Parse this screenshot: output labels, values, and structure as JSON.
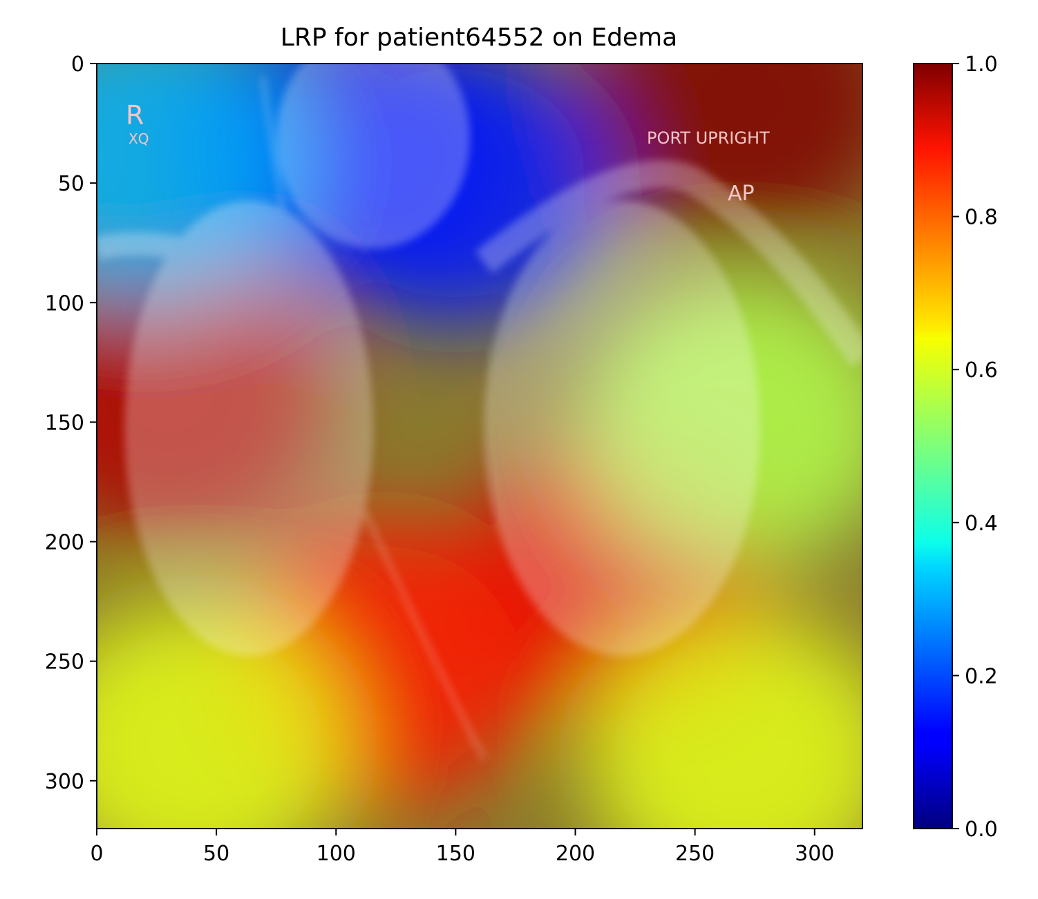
{
  "chart_data": {
    "type": "heatmap",
    "title": "LRP for patient64552 on Edema",
    "xlabel": "",
    "ylabel": "",
    "xlim": [
      0,
      320
    ],
    "ylim": [
      320,
      0
    ],
    "x_ticks": [
      0,
      50,
      100,
      150,
      200,
      250,
      300
    ],
    "y_ticks": [
      0,
      50,
      100,
      150,
      200,
      250,
      300
    ],
    "colorbar": {
      "colormap": "jet",
      "range": [
        0.0,
        1.0
      ],
      "ticks": [
        "0.0",
        "0.2",
        "0.4",
        "0.6",
        "0.8",
        "1.0"
      ]
    },
    "background_image": "chest x-ray (AP, portable upright)",
    "image_annotations": [
      "R",
      "XQ",
      "PORT UPRIGHT",
      "AP"
    ],
    "relevance_blobs": [
      {
        "x": 270,
        "y": 15,
        "value": 1.0
      },
      {
        "x": 30,
        "y": 140,
        "value": 0.95
      },
      {
        "x": 220,
        "y": 215,
        "value": 0.9
      },
      {
        "x": 120,
        "y": 250,
        "value": 0.85
      },
      {
        "x": 100,
        "y": 35,
        "value": 0.1
      },
      {
        "x": 150,
        "y": 50,
        "value": 0.15
      },
      {
        "x": 20,
        "y": 40,
        "value": 0.3
      },
      {
        "x": 270,
        "y": 150,
        "value": 0.55
      },
      {
        "x": 40,
        "y": 285,
        "value": 0.6
      },
      {
        "x": 270,
        "y": 290,
        "value": 0.6
      }
    ],
    "grid": false
  }
}
